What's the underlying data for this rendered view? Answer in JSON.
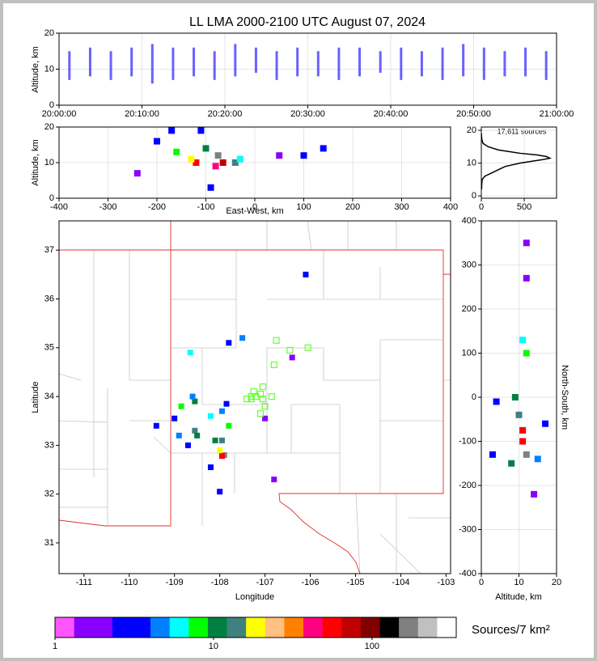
{
  "chart_data": [
    {
      "type": "band",
      "title": "LL LMA 2000-2100 UTC August 07, 2024",
      "ylabel": "Altitude, km",
      "color": "#3a2cff",
      "grid": true,
      "x": [
        75,
        225,
        375,
        525,
        675,
        825,
        975,
        1125,
        1275,
        1425,
        1575,
        1725,
        1875,
        2025,
        2175,
        2325,
        2475,
        2625,
        2775,
        2925,
        3075,
        3225,
        3375,
        3525
      ],
      "low": [
        7,
        8,
        7,
        8,
        6,
        7,
        8,
        7,
        8,
        9,
        7,
        8,
        8,
        7,
        8,
        9,
        7,
        8,
        7,
        8,
        7,
        8,
        8,
        7
      ],
      "high": [
        15,
        16,
        15,
        16,
        17,
        16,
        16,
        15,
        17,
        16,
        15,
        16,
        15,
        16,
        16,
        15,
        16,
        15,
        16,
        17,
        16,
        15,
        16,
        15
      ],
      "xlim": [
        0,
        3600
      ],
      "xticks": [
        {
          "value": 0,
          "label": "20:00:00"
        },
        {
          "value": 600,
          "label": "20:10:00"
        },
        {
          "value": 1200,
          "label": "20:20:00"
        },
        {
          "value": 1800,
          "label": "20:30:00"
        },
        {
          "value": 2400,
          "label": "20:40:00"
        },
        {
          "value": 3000,
          "label": "20:50:00"
        },
        {
          "value": 3600,
          "label": "21:00:00"
        }
      ],
      "ylim": [
        0,
        20
      ],
      "yticks": [
        0,
        10,
        20
      ]
    },
    {
      "type": "density",
      "xlabel": "East-West, km",
      "ylabel": "Altitude, km",
      "grid": true,
      "x": [
        -75,
        -65,
        -80,
        -120,
        -130,
        -160,
        -100,
        -40,
        -30,
        -200,
        -90,
        100,
        140,
        50,
        -240,
        -170,
        -110
      ],
      "y": [
        12,
        10,
        9,
        10,
        11,
        13,
        14,
        10,
        11,
        16,
        3,
        12,
        14,
        12,
        7,
        19,
        19
      ],
      "counts": [
        150,
        80,
        40,
        60,
        20,
        8,
        10,
        15,
        6,
        3,
        3,
        3,
        3,
        2,
        2,
        3,
        3
      ],
      "xlim": [
        -400,
        400
      ],
      "xticks": [
        -400,
        -300,
        -200,
        -100,
        0,
        100,
        200,
        300,
        400
      ],
      "ylim": [
        0,
        20
      ],
      "yticks": [
        0,
        10,
        20
      ]
    },
    {
      "type": "line",
      "annotation": "17,611 sources",
      "color": "#000000",
      "grid": true,
      "x": [
        3,
        4,
        6,
        10,
        40,
        120,
        200,
        280,
        450,
        700,
        800,
        760,
        650,
        450,
        200,
        80,
        20,
        8,
        3,
        1
      ],
      "y": [
        2,
        3,
        4,
        5,
        6,
        7,
        8,
        9,
        10,
        11,
        11.5,
        12,
        12.5,
        13,
        14,
        15,
        16,
        17,
        18,
        19
      ],
      "xlim": [
        0,
        877
      ],
      "xticks": [
        0,
        500
      ],
      "ylim": [
        -0.7,
        21
      ],
      "yticks": [
        0,
        10,
        20
      ]
    },
    {
      "type": "map",
      "xlabel": "Longitude",
      "ylabel": "Latitude",
      "grid": false,
      "x": [
        -107.9,
        -107.95,
        -108.0,
        -107.95,
        -108.1,
        -107.8,
        -108.2,
        -107.95,
        -108.55,
        -108.6,
        -108.55,
        -108.5,
        -108.85,
        -108.9,
        -108.7,
        -109.0,
        -109.4,
        -108.65,
        -107.8,
        -107.5,
        -106.1,
        -107.0,
        -106.8,
        -106.4,
        -108.0,
        -107.85,
        -108.2
      ],
      "y": [
        32.8,
        32.78,
        32.9,
        33.1,
        33.1,
        33.4,
        33.6,
        33.7,
        33.9,
        34.0,
        33.3,
        33.2,
        33.8,
        33.2,
        33.0,
        33.55,
        33.4,
        34.9,
        35.1,
        35.2,
        36.5,
        33.55,
        32.3,
        34.8,
        32.05,
        33.85,
        32.55
      ],
      "counts": [
        150,
        60,
        20,
        15,
        10,
        8,
        6,
        5,
        12,
        5,
        15,
        10,
        8,
        5,
        3,
        4,
        3,
        6,
        4,
        5,
        4,
        2,
        2,
        2,
        3,
        3,
        4
      ],
      "stations": {
        "color": "#66ff33",
        "x": [
          -106.75,
          -106.45,
          -106.05,
          -106.8,
          -107.05,
          -107.1,
          -107.2,
          -107.3,
          -107.4,
          -107.25,
          -107.05,
          -106.85,
          -107.0,
          -107.1,
          -107.3
        ],
        "y": [
          35.15,
          34.95,
          35.0,
          34.65,
          34.2,
          34.05,
          34.0,
          34.0,
          33.95,
          34.1,
          33.95,
          34.0,
          33.8,
          33.65,
          33.95
        ]
      },
      "xlim": [
        -111.55,
        -102.9
      ],
      "xticks": [
        -111,
        -110,
        -109,
        -108,
        -107,
        -106,
        -105,
        -104,
        -103
      ],
      "ylim": [
        30.37,
        37.6
      ],
      "yticks": [
        31,
        32,
        33,
        34,
        35,
        36,
        37
      ]
    },
    {
      "type": "density",
      "xlabel": "Altitude, km",
      "ylabel": "North-South, km",
      "grid": true,
      "x": [
        12,
        11,
        11,
        10,
        9,
        12,
        11,
        8,
        15,
        4,
        3,
        12,
        12,
        17,
        14
      ],
      "y": [
        -130,
        -100,
        -75,
        -40,
        0,
        100,
        130,
        -150,
        -140,
        -10,
        -130,
        270,
        350,
        -60,
        -220
      ],
      "counts": [
        150,
        60,
        50,
        15,
        10,
        8,
        6,
        12,
        5,
        3,
        3,
        2,
        2,
        3,
        2
      ],
      "xlim": [
        0,
        20
      ],
      "xticks": [
        0,
        10,
        20
      ],
      "ylim": [
        -400,
        400
      ],
      "yticks": [
        -400,
        -300,
        -200,
        -100,
        0,
        100,
        200,
        300,
        400
      ]
    },
    {
      "type": "colorbar",
      "label": "Sources/7 km²",
      "log": true,
      "colors": [
        "#ff55ff",
        "#8800ff",
        "#8800ff",
        "#0000ff",
        "#0000ff",
        "#0080ff",
        "#00ffff",
        "#00ff00",
        "#008040",
        "#408080",
        "#ffff00",
        "#ffc080",
        "#ff8000",
        "#ff0080",
        "#ff0000",
        "#c00000",
        "#800000",
        "#000000",
        "#808080",
        "#c0c0c0",
        "#ffffff"
      ],
      "lim": [
        1,
        340
      ],
      "ticks": [
        1,
        10,
        100
      ]
    }
  ]
}
